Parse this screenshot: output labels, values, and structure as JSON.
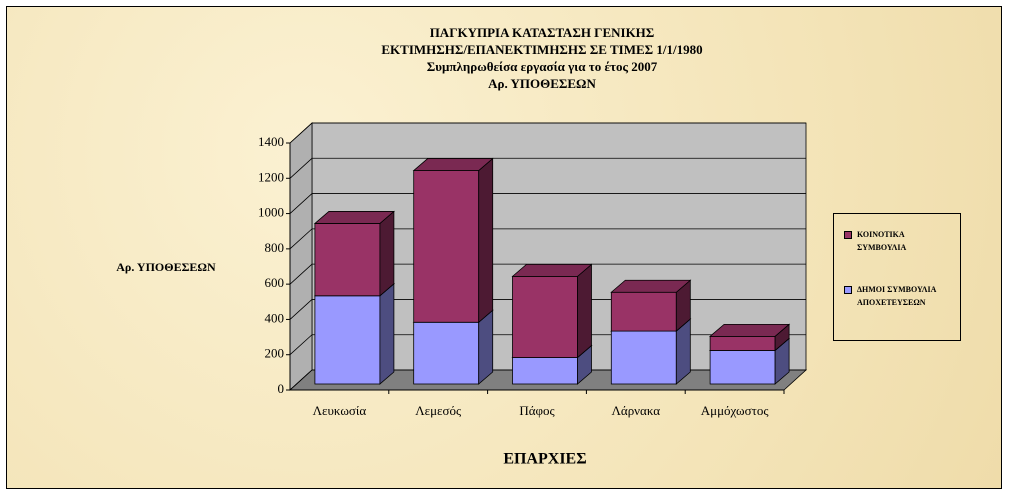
{
  "chart_data": {
    "type": "bar3d_stacked",
    "title": [
      "ΠΑΓΚΥΠΡΙΑ ΚΑΤΑΣΤΑΣΗ ΓΕΝΙΚΗΣ",
      "ΕΚΤΙΜΗΣΗΣ/ΕΠΑΝΕΚΤΙΜΗΣΗΣ ΣΕ ΤΙΜΕΣ 1/1/1980",
      "Συμπληρωθείσα εργασία για το έτος 2007",
      "Αρ. ΥΠΟΘΕΣΕΩΝ"
    ],
    "y_label": "Αρ. ΥΠΟΘΕΣΕΩΝ",
    "x_label": "ΕΠΑΡΧΙΕΣ",
    "categories": [
      "Λευκωσία",
      "Λεμεσός",
      "Πάφος",
      "Λάρνακα",
      "Αμμόχωστος"
    ],
    "series": [
      {
        "name": "ΔΗΜΟΙ ΣΥΜΒΟΥΛΙΑ ΑΠΟΧΕΤΕΥΣΕΩΝ",
        "color": "#9999ff",
        "values": [
          500,
          350,
          150,
          300,
          190
        ]
      },
      {
        "name": "ΚΟΙΝΟΤΙΚΑ ΣΥΜΒΟΥΛΙΑ",
        "color": "#993366",
        "values": [
          410,
          860,
          460,
          220,
          80
        ]
      }
    ],
    "ylim": [
      0,
      1400
    ],
    "yticks": [
      0,
      200,
      400,
      600,
      800,
      1000,
      1200,
      1400
    ],
    "grid": true,
    "legend": "right"
  }
}
